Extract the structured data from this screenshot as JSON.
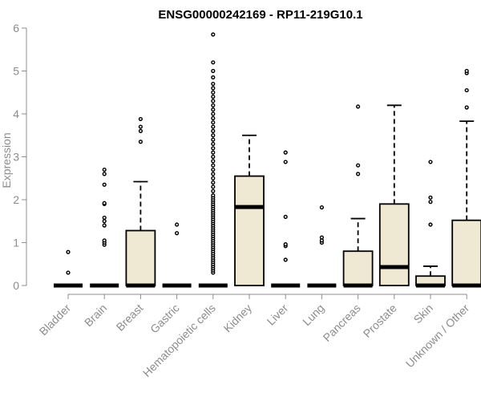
{
  "chart_data": {
    "type": "boxplot",
    "title": "ENSG00000242169 - RP11-219G10.1",
    "xlabel": "",
    "ylabel": "Expression",
    "ylim": [
      0,
      6
    ],
    "yticks": [
      0,
      1,
      2,
      3,
      4,
      5,
      6
    ],
    "grid": false,
    "categories": [
      "Bladder",
      "Brain",
      "Breast",
      "Gastric",
      "Hematopoietic cells",
      "Kidney",
      "Liver",
      "Lung",
      "Pancreas",
      "Prostate",
      "Skin",
      "Unknown / Other"
    ],
    "boxes": [
      {
        "category": "Bladder",
        "q1": 0,
        "median": 0,
        "q3": 0,
        "whisker_low": 0,
        "whisker_high": 0,
        "outliers": [
          0.3,
          0.78
        ]
      },
      {
        "category": "Brain",
        "q1": 0,
        "median": 0,
        "q3": 0,
        "whisker_low": 0,
        "whisker_high": 0,
        "outliers": [
          0.95,
          1.0,
          1.05,
          1.4,
          1.5,
          1.58,
          1.9,
          1.92,
          2.35,
          2.6,
          2.7
        ]
      },
      {
        "category": "Breast",
        "q1": 0,
        "median": 0,
        "q3": 1.28,
        "whisker_low": 0,
        "whisker_high": 2.42,
        "outliers": [
          3.35,
          3.6,
          3.7,
          3.88
        ]
      },
      {
        "category": "Gastric",
        "q1": 0,
        "median": 0,
        "q3": 0,
        "whisker_low": 0,
        "whisker_high": 0,
        "outliers": [
          1.22,
          1.42
        ]
      },
      {
        "category": "Hematopoietic cells",
        "q1": 0,
        "median": 0,
        "q3": 0,
        "whisker_low": 0,
        "whisker_high": 0,
        "outliers": [
          0.3,
          0.35,
          0.4,
          0.45,
          0.5,
          0.55,
          0.6,
          0.65,
          0.7,
          0.75,
          0.8,
          0.85,
          0.9,
          0.95,
          1.0,
          1.05,
          1.1,
          1.15,
          1.2,
          1.25,
          1.3,
          1.35,
          1.4,
          1.45,
          1.5,
          1.55,
          1.6,
          1.65,
          1.7,
          1.75,
          1.8,
          1.85,
          1.9,
          1.95,
          2.0,
          2.05,
          2.1,
          2.2,
          2.3,
          2.4,
          2.5,
          2.6,
          2.7,
          2.8,
          2.9,
          3.0,
          3.1,
          3.2,
          3.3,
          3.4,
          3.5,
          3.6,
          3.7,
          3.8,
          3.9,
          4.0,
          4.1,
          4.2,
          4.3,
          4.4,
          4.5,
          4.6,
          4.7,
          4.85,
          5.0,
          5.2,
          5.85
        ]
      },
      {
        "category": "Kidney",
        "q1": 0,
        "median": 1.83,
        "q3": 2.55,
        "whisker_low": 0,
        "whisker_high": 3.5,
        "outliers": []
      },
      {
        "category": "Liver",
        "q1": 0,
        "median": 0,
        "q3": 0,
        "whisker_low": 0,
        "whisker_high": 0,
        "outliers": [
          0.6,
          0.92,
          0.96,
          1.6,
          2.88,
          3.1
        ]
      },
      {
        "category": "Lung",
        "q1": 0,
        "median": 0,
        "q3": 0,
        "whisker_low": 0,
        "whisker_high": 0,
        "outliers": [
          1.0,
          1.05,
          1.12,
          1.82
        ]
      },
      {
        "category": "Pancreas",
        "q1": 0,
        "median": 0,
        "q3": 0.8,
        "whisker_low": 0,
        "whisker_high": 1.56,
        "outliers": [
          2.6,
          2.8,
          4.17
        ]
      },
      {
        "category": "Prostate",
        "q1": 0,
        "median": 0.43,
        "q3": 1.9,
        "whisker_low": 0,
        "whisker_high": 4.2,
        "outliers": []
      },
      {
        "category": "Skin",
        "q1": 0,
        "median": 0,
        "q3": 0.22,
        "whisker_low": 0,
        "whisker_high": 0.45,
        "outliers": [
          1.42,
          1.95,
          2.05,
          2.88
        ]
      },
      {
        "category": "Unknown / Other",
        "q1": 0,
        "median": 0,
        "q3": 1.52,
        "whisker_low": 0,
        "whisker_high": 3.83,
        "outliers": [
          4.15,
          4.55,
          4.95,
          5.0
        ]
      }
    ]
  }
}
